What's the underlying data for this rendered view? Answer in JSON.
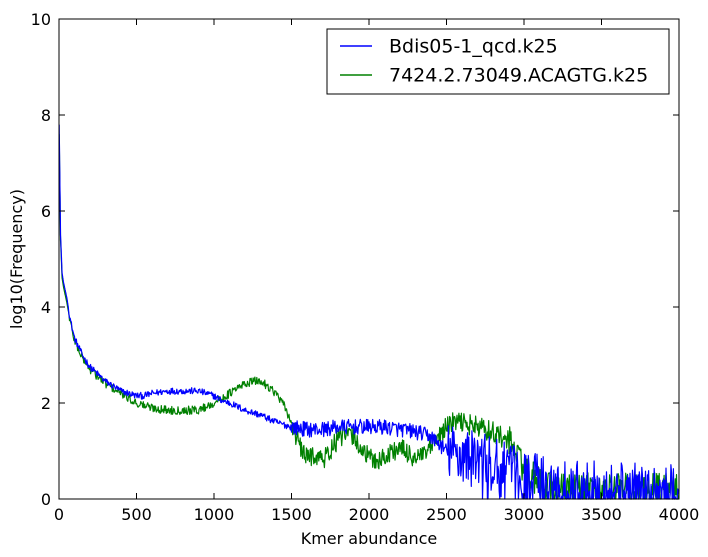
{
  "chart_data": {
    "type": "line",
    "title": "",
    "xlabel": "Kmer abundance",
    "ylabel": "log10(Frequency)",
    "xlim": [
      0,
      4000
    ],
    "ylim": [
      0,
      10
    ],
    "xticks": [
      0,
      500,
      1000,
      1500,
      2000,
      2500,
      3000,
      3500,
      4000
    ],
    "yticks": [
      0,
      2,
      4,
      6,
      8,
      10
    ],
    "grid": false,
    "legend_position": "top-right",
    "series": [
      {
        "name": "Bdis05-1_qcd.k25",
        "color": "#0000ff",
        "noise_note": "values are a smoothed trend; the plotted line is very noisy, roughly ±0.1 below x=1500 and growing to about ±0.7 beyond 2500, with many points dropping to 0 past 2600",
        "x": [
          1,
          5,
          10,
          20,
          30,
          50,
          75,
          100,
          150,
          200,
          250,
          300,
          350,
          400,
          450,
          500,
          550,
          600,
          700,
          800,
          900,
          1000,
          1050,
          1100,
          1200,
          1300,
          1400,
          1500,
          1600,
          1700,
          1800,
          1900,
          2000,
          2100,
          2200,
          2300,
          2400,
          2500,
          2600,
          2700,
          2800,
          2900,
          3000,
          3100,
          3200,
          3300,
          3400,
          3500,
          3600,
          3700,
          3800,
          3900,
          4000
        ],
        "y": [
          7.8,
          6.8,
          5.5,
          4.7,
          4.5,
          4.2,
          3.7,
          3.35,
          3.0,
          2.75,
          2.6,
          2.45,
          2.35,
          2.25,
          2.2,
          2.15,
          2.15,
          2.2,
          2.25,
          2.25,
          2.25,
          2.15,
          2.05,
          2.0,
          1.85,
          1.75,
          1.6,
          1.5,
          1.45,
          1.45,
          1.5,
          1.5,
          1.5,
          1.5,
          1.45,
          1.4,
          1.3,
          1.0,
          0.9,
          0.8,
          0.7,
          0.55,
          0.45,
          0.35,
          0.3,
          0.25,
          0.2,
          0.2,
          0.2,
          0.15,
          0.15,
          0.15,
          0.15
        ]
      },
      {
        "name": "7424.2.73049.ACAGTG.k25",
        "color": "#008000",
        "noise_note": "values are a smoothed trend; the plotted line is noisy, roughly ±0.1 below x=1500 and growing to about ±0.5 beyond 2900",
        "x": [
          1,
          5,
          10,
          20,
          30,
          50,
          75,
          100,
          150,
          200,
          250,
          300,
          350,
          400,
          450,
          500,
          550,
          600,
          700,
          800,
          900,
          1000,
          1050,
          1100,
          1150,
          1200,
          1250,
          1300,
          1350,
          1400,
          1450,
          1500,
          1550,
          1600,
          1650,
          1700,
          1750,
          1800,
          1850,
          1900,
          1950,
          2000,
          2050,
          2100,
          2150,
          2200,
          2250,
          2300,
          2350,
          2400,
          2450,
          2500,
          2550,
          2600,
          2650,
          2700,
          2800,
          2900,
          2950,
          3000,
          3050,
          3100,
          3200,
          3300,
          3400,
          3500,
          3600,
          3700,
          3800,
          3900,
          4000
        ],
        "y": [
          7.6,
          6.7,
          5.4,
          4.6,
          4.4,
          4.1,
          3.65,
          3.3,
          2.95,
          2.7,
          2.55,
          2.4,
          2.3,
          2.2,
          2.1,
          2.0,
          1.95,
          1.9,
          1.85,
          1.85,
          1.85,
          2.0,
          2.1,
          2.2,
          2.3,
          2.4,
          2.45,
          2.45,
          2.35,
          2.2,
          1.95,
          1.6,
          1.1,
          0.85,
          0.95,
          0.8,
          1.0,
          1.25,
          1.35,
          1.3,
          1.05,
          0.85,
          0.8,
          0.85,
          1.0,
          1.05,
          0.95,
          0.85,
          0.9,
          1.05,
          1.3,
          1.5,
          1.6,
          1.6,
          1.55,
          1.5,
          1.4,
          1.2,
          1.0,
          0.65,
          0.45,
          0.3,
          0.2,
          0.2,
          0.2,
          0.2,
          0.2,
          0.2,
          0.2,
          0.2,
          0.2
        ]
      }
    ]
  }
}
